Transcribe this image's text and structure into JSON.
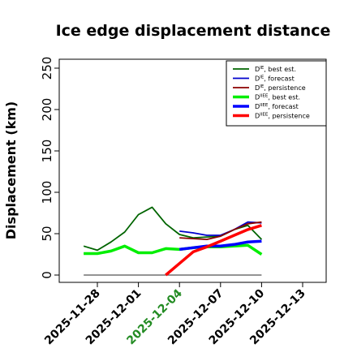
{
  "chart_data": {
    "type": "line",
    "title": "Ice edge displacement distance",
    "ylabel": "Displacement (km)",
    "xlabel": "",
    "ylim": [
      0,
      260
    ],
    "yticks": [
      0,
      50,
      100,
      150,
      200,
      250
    ],
    "xlim": [
      "2025-11-26",
      "2025-12-14"
    ],
    "xticks": [
      "2025-11-28",
      "2025-12-01",
      "2025-12-04",
      "2025-12-07",
      "2025-12-10",
      "2025-12-13"
    ],
    "xticks_highlight": "2025-12-04",
    "grid": false,
    "legend_position": "top-right",
    "reference_line": {
      "y": 0,
      "x_from": "2025-11-27",
      "x_to": "2025-12-10",
      "color": "#555555"
    },
    "series": [
      {
        "name": "D^IE, best est.",
        "legend_sup": "IE",
        "legend_rest": ", best est.",
        "color": "#006400",
        "width": 1.8,
        "x": [
          "2025-11-27",
          "2025-11-28",
          "2025-11-29",
          "2025-11-30",
          "2025-12-01",
          "2025-12-02",
          "2025-12-03",
          "2025-12-04",
          "2025-12-05",
          "2025-12-06",
          "2025-12-07",
          "2025-12-08",
          "2025-12-09",
          "2025-12-10"
        ],
        "values": [
          35,
          30,
          40,
          52,
          73,
          82,
          62,
          49,
          45,
          46,
          47,
          55,
          60,
          43
        ]
      },
      {
        "name": "D^IE, forecast",
        "legend_sup": "IE",
        "legend_rest": ", forecast",
        "color": "#0000cc",
        "width": 1.8,
        "x": [
          "2025-12-04",
          "2025-12-05",
          "2025-12-06",
          "2025-12-07",
          "2025-12-08",
          "2025-12-09",
          "2025-12-10"
        ],
        "values": [
          53,
          51,
          48,
          48,
          55,
          64,
          63
        ]
      },
      {
        "name": "D^IE, persistence",
        "legend_sup": "IE",
        "legend_rest": ", persistence",
        "color": "#8b0000",
        "width": 1.8,
        "x": [
          "2025-12-04",
          "2025-12-05",
          "2025-12-06",
          "2025-12-07",
          "2025-12-08",
          "2025-12-09",
          "2025-12-10"
        ],
        "values": [
          45,
          44,
          43,
          47,
          55,
          62,
          64
        ]
      },
      {
        "name": "D^IIEE, best est.",
        "legend_sup": "IIEE",
        "legend_rest": ", best est.",
        "color": "#00ee00",
        "width": 3.5,
        "x": [
          "2025-11-27",
          "2025-11-28",
          "2025-11-29",
          "2025-11-30",
          "2025-12-01",
          "2025-12-02",
          "2025-12-03",
          "2025-12-04",
          "2025-12-05",
          "2025-12-06",
          "2025-12-07",
          "2025-12-08",
          "2025-12-09",
          "2025-12-10"
        ],
        "values": [
          26,
          26,
          29,
          35,
          27,
          27,
          32,
          31,
          33,
          34,
          34,
          35,
          36,
          25
        ]
      },
      {
        "name": "D^IIEE, forecast",
        "legend_sup": "IIEE",
        "legend_rest": ", forecast",
        "color": "#0000ff",
        "width": 3.5,
        "x": [
          "2025-12-04",
          "2025-12-05",
          "2025-12-06",
          "2025-12-07",
          "2025-12-08",
          "2025-12-09",
          "2025-12-10"
        ],
        "values": [
          31,
          33,
          35,
          35,
          37,
          40,
          41
        ]
      },
      {
        "name": "D^IIEE, persistence",
        "legend_sup": "IIEE",
        "legend_rest": ", persistence",
        "color": "#ff0000",
        "width": 3.5,
        "x": [
          "2025-12-03",
          "2025-12-04",
          "2025-12-05",
          "2025-12-06",
          "2025-12-07",
          "2025-12-08",
          "2025-12-09",
          "2025-12-10"
        ],
        "values": [
          0,
          14,
          28,
          34,
          41,
          48,
          55,
          60
        ]
      }
    ]
  }
}
